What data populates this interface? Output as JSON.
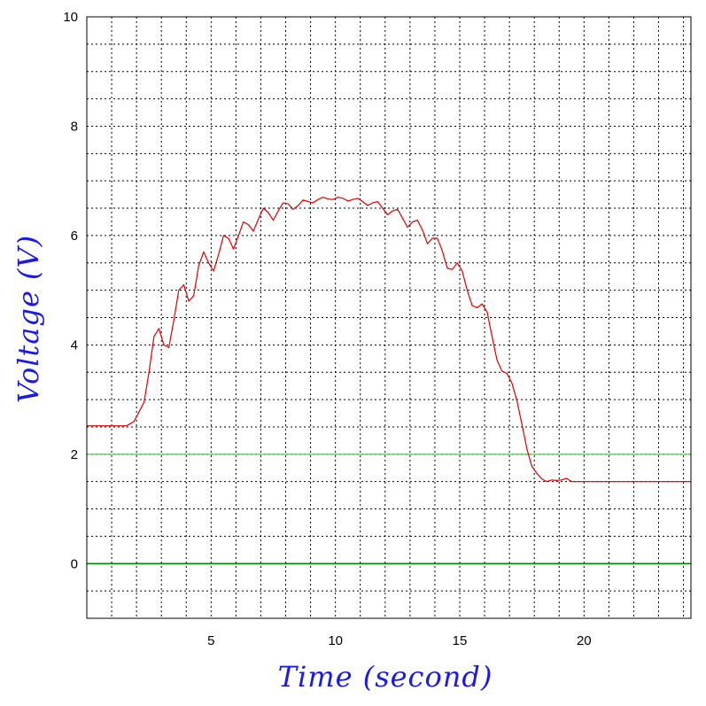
{
  "chart_data": {
    "type": "line",
    "xlabel": "Time (second)",
    "ylabel": "Voltage (V)",
    "xlim": [
      0,
      24.3
    ],
    "ylim": [
      -1,
      10
    ],
    "x_ticks": [
      5,
      10,
      15,
      20
    ],
    "y_ticks": [
      0,
      2,
      4,
      6,
      8,
      10
    ],
    "x_tick_labels": [
      "5",
      "10",
      "15",
      "20"
    ],
    "y_tick_labels": [
      "0",
      "2",
      "4",
      "6",
      "8",
      "10"
    ],
    "grid": true,
    "grid_x_step": 1,
    "grid_y_step": 0.5,
    "reference_lines": [
      {
        "y": 2,
        "color": "#33bb33"
      },
      {
        "y": 0,
        "color": "#008800"
      }
    ],
    "series": [
      {
        "color": "#dd0000",
        "x": [
          0,
          1.6,
          1.9,
          2.3,
          2.5,
          2.7,
          2.9,
          3.1,
          3.3,
          3.5,
          3.7,
          3.9,
          4.1,
          4.3,
          4.5,
          4.7,
          4.9,
          5.1,
          5.3,
          5.5,
          5.7,
          5.9,
          6.1,
          6.3,
          6.5,
          6.7,
          6.9,
          7.1,
          7.3,
          7.5,
          7.7,
          7.9,
          8.1,
          8.3,
          8.5,
          8.7,
          8.9,
          9.1,
          9.3,
          9.5,
          9.7,
          9.9,
          10.1,
          10.3,
          10.5,
          10.7,
          10.9,
          11.1,
          11.3,
          11.5,
          11.7,
          11.9,
          12.1,
          12.3,
          12.5,
          12.7,
          12.9,
          13.1,
          13.3,
          13.5,
          13.7,
          13.9,
          14.1,
          14.3,
          14.5,
          14.7,
          14.9,
          15.1,
          15.3,
          15.5,
          15.7,
          15.9,
          16.1,
          16.3,
          16.5,
          16.7,
          16.9,
          17.1,
          17.3,
          17.5,
          17.7,
          17.9,
          18.1,
          18.3,
          18.5,
          18.7,
          18.9,
          19.1,
          19.3,
          19.5,
          19.7,
          20,
          24.3
        ],
        "y": [
          2.52,
          2.52,
          2.6,
          2.95,
          3.5,
          4.15,
          4.3,
          4.0,
          3.95,
          4.45,
          5.0,
          5.1,
          4.8,
          4.9,
          5.45,
          5.7,
          5.5,
          5.35,
          5.65,
          6.0,
          5.95,
          5.75,
          6.0,
          6.25,
          6.2,
          6.08,
          6.3,
          6.5,
          6.42,
          6.28,
          6.45,
          6.6,
          6.58,
          6.48,
          6.55,
          6.65,
          6.62,
          6.6,
          6.66,
          6.7,
          6.67,
          6.66,
          6.7,
          6.68,
          6.63,
          6.66,
          6.68,
          6.62,
          6.55,
          6.6,
          6.62,
          6.5,
          6.38,
          6.45,
          6.48,
          6.32,
          6.15,
          6.25,
          6.28,
          6.1,
          5.85,
          5.95,
          5.95,
          5.72,
          5.4,
          5.38,
          5.5,
          5.35,
          5.0,
          4.72,
          4.68,
          4.75,
          4.6,
          4.15,
          3.72,
          3.52,
          3.48,
          3.3,
          2.98,
          2.55,
          2.1,
          1.78,
          1.65,
          1.55,
          1.5,
          1.53,
          1.52,
          1.53,
          1.56,
          1.5,
          1.5,
          1.5,
          1.5
        ]
      }
    ]
  }
}
